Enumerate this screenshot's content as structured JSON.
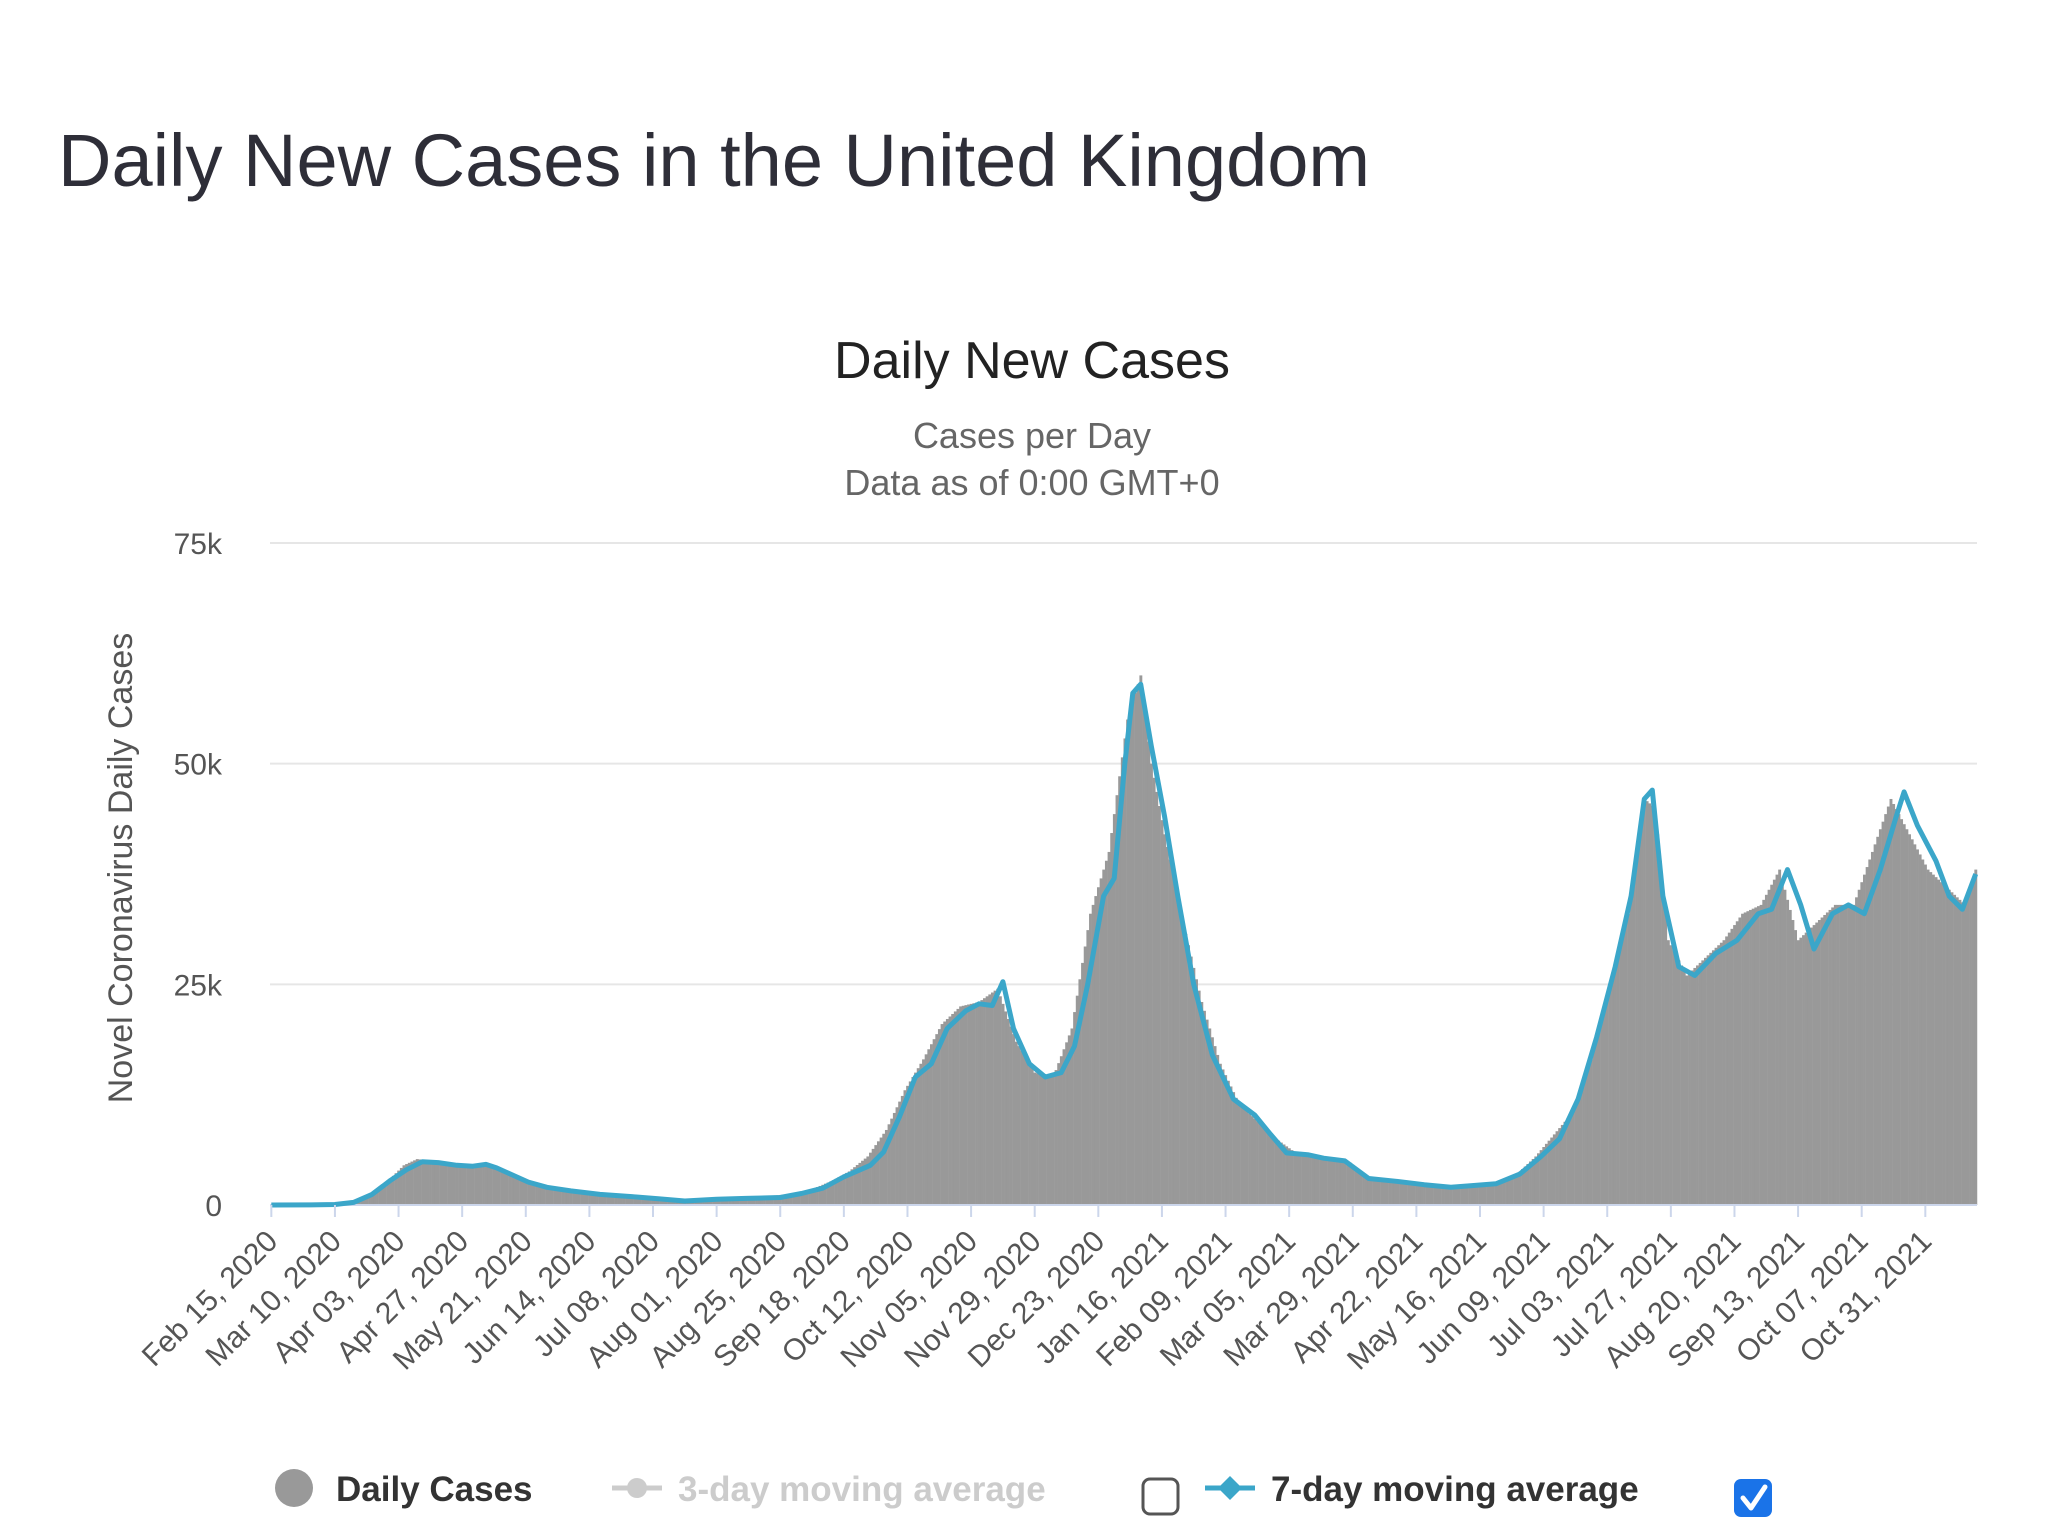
{
  "page": {
    "title": "Daily New Cases in the United Kingdom"
  },
  "chart_data": {
    "type": "bar",
    "title": "Daily New Cases",
    "subtitle": "Cases per Day",
    "subtitle2": "Data as of 0:00 GMT+0",
    "ylabel": "Novel Coronavirus Daily Cases",
    "ylim": [
      0,
      75000
    ],
    "yticks": [
      {
        "value": 0,
        "label": "0"
      },
      {
        "value": 25000,
        "label": "25k"
      },
      {
        "value": 50000,
        "label": "50k"
      },
      {
        "value": 75000,
        "label": "75k"
      }
    ],
    "x_range": [
      "2020-02-15",
      "2021-11-19"
    ],
    "xticks": [
      "Feb 15, 2020",
      "Mar 10, 2020",
      "Apr 03, 2020",
      "Apr 27, 2020",
      "May 21, 2020",
      "Jun 14, 2020",
      "Jul 08, 2020",
      "Aug 01, 2020",
      "Aug 25, 2020",
      "Sep 18, 2020",
      "Oct 12, 2020",
      "Nov 05, 2020",
      "Nov 29, 2020",
      "Dec 23, 2020",
      "Jan 16, 2021",
      "Feb 09, 2021",
      "Mar 05, 2021",
      "Mar 29, 2021",
      "Apr 22, 2021",
      "May 16, 2021",
      "Jun 09, 2021",
      "Jul 03, 2021",
      "Jul 27, 2021",
      "Aug 20, 2021",
      "Sep 13, 2021",
      "Oct 07, 2021",
      "Oct 31, 2021"
    ],
    "grid": true,
    "legend_position": "bottom",
    "colors": {
      "bars": "#999999",
      "avg7": "#3ba6c9",
      "avg3": "#cccccc",
      "grid": "#e6e6e6",
      "axis": "#ccd6eb",
      "checkbox": "#1a73e8"
    },
    "series": [
      {
        "name": "Daily Cases",
        "type": "bar",
        "points": [
          [
            "2020-02-15",
            0
          ],
          [
            "2020-03-01",
            10
          ],
          [
            "2020-03-10",
            60
          ],
          [
            "2020-03-16",
            200
          ],
          [
            "2020-03-20",
            700
          ],
          [
            "2020-03-25",
            1500
          ],
          [
            "2020-03-31",
            3000
          ],
          [
            "2020-04-05",
            4500
          ],
          [
            "2020-04-10",
            5200
          ],
          [
            "2020-04-15",
            5000
          ],
          [
            "2020-04-20",
            4700
          ],
          [
            "2020-04-25",
            4600
          ],
          [
            "2020-05-01",
            4500
          ],
          [
            "2020-05-06",
            4600
          ],
          [
            "2020-05-11",
            4000
          ],
          [
            "2020-05-16",
            3200
          ],
          [
            "2020-05-21",
            2600
          ],
          [
            "2020-05-26",
            2100
          ],
          [
            "2020-06-01",
            1800
          ],
          [
            "2020-06-07",
            1500
          ],
          [
            "2020-06-14",
            1300
          ],
          [
            "2020-06-21",
            1100
          ],
          [
            "2020-06-28",
            900
          ],
          [
            "2020-07-05",
            700
          ],
          [
            "2020-07-12",
            550
          ],
          [
            "2020-07-20",
            650
          ],
          [
            "2020-08-01",
            750
          ],
          [
            "2020-08-10",
            850
          ],
          [
            "2020-08-20",
            1000
          ],
          [
            "2020-08-31",
            1300
          ],
          [
            "2020-09-07",
            1900
          ],
          [
            "2020-09-14",
            2800
          ],
          [
            "2020-09-20",
            3800
          ],
          [
            "2020-09-27",
            5500
          ],
          [
            "2020-10-04",
            8500
          ],
          [
            "2020-10-11",
            13000
          ],
          [
            "2020-10-18",
            16500
          ],
          [
            "2020-10-25",
            20500
          ],
          [
            "2020-11-01",
            22500
          ],
          [
            "2020-11-08",
            23000
          ],
          [
            "2020-11-15",
            24500
          ],
          [
            "2020-11-22",
            18500
          ],
          [
            "2020-11-29",
            15000
          ],
          [
            "2020-12-06",
            14500
          ],
          [
            "2020-12-13",
            20000
          ],
          [
            "2020-12-20",
            33000
          ],
          [
            "2020-12-27",
            40000
          ],
          [
            "2021-01-03",
            55000
          ],
          [
            "2021-01-08",
            60000
          ],
          [
            "2021-01-12",
            50000
          ],
          [
            "2021-01-17",
            42000
          ],
          [
            "2021-01-24",
            32000
          ],
          [
            "2021-01-31",
            23000
          ],
          [
            "2021-02-07",
            16000
          ],
          [
            "2021-02-14",
            11500
          ],
          [
            "2021-02-21",
            9500
          ],
          [
            "2021-02-28",
            7500
          ],
          [
            "2021-03-07",
            6000
          ],
          [
            "2021-03-14",
            5500
          ],
          [
            "2021-03-21",
            5200
          ],
          [
            "2021-03-28",
            4800
          ],
          [
            "2021-04-04",
            3000
          ],
          [
            "2021-04-11",
            2700
          ],
          [
            "2021-04-18",
            2500
          ],
          [
            "2021-04-25",
            2200
          ],
          [
            "2021-05-02",
            2000
          ],
          [
            "2021-05-09",
            2100
          ],
          [
            "2021-05-16",
            2200
          ],
          [
            "2021-05-23",
            2500
          ],
          [
            "2021-05-30",
            3500
          ],
          [
            "2021-06-06",
            5500
          ],
          [
            "2021-06-13",
            8000
          ],
          [
            "2021-06-20",
            10500
          ],
          [
            "2021-06-27",
            16500
          ],
          [
            "2021-07-04",
            25000
          ],
          [
            "2021-07-11",
            33000
          ],
          [
            "2021-07-17",
            46000
          ],
          [
            "2021-07-21",
            45000
          ],
          [
            "2021-07-26",
            30000
          ],
          [
            "2021-08-02",
            26000
          ],
          [
            "2021-08-09",
            28000
          ],
          [
            "2021-08-16",
            30000
          ],
          [
            "2021-08-23",
            33000
          ],
          [
            "2021-08-30",
            34000
          ],
          [
            "2021-09-06",
            38000
          ],
          [
            "2021-09-13",
            30000
          ],
          [
            "2021-09-20",
            32000
          ],
          [
            "2021-09-27",
            34000
          ],
          [
            "2021-10-04",
            34000
          ],
          [
            "2021-10-11",
            40000
          ],
          [
            "2021-10-18",
            46000
          ],
          [
            "2021-10-25",
            42000
          ],
          [
            "2021-11-01",
            38000
          ],
          [
            "2021-11-08",
            36000
          ],
          [
            "2021-11-15",
            34000
          ],
          [
            "2021-11-19",
            38000
          ]
        ]
      },
      {
        "name": "3-day moving average",
        "type": "line",
        "visible": false,
        "checked": false
      },
      {
        "name": "7-day moving average",
        "type": "line",
        "visible": true,
        "checked": true,
        "points": [
          [
            "2020-02-15",
            0
          ],
          [
            "2020-03-01",
            10
          ],
          [
            "2020-03-10",
            60
          ],
          [
            "2020-03-17",
            300
          ],
          [
            "2020-03-24",
            1200
          ],
          [
            "2020-03-31",
            2800
          ],
          [
            "2020-04-06",
            4000
          ],
          [
            "2020-04-12",
            4900
          ],
          [
            "2020-04-18",
            4800
          ],
          [
            "2020-04-25",
            4500
          ],
          [
            "2020-05-01",
            4400
          ],
          [
            "2020-05-06",
            4600
          ],
          [
            "2020-05-10",
            4200
          ],
          [
            "2020-05-16",
            3400
          ],
          [
            "2020-05-22",
            2600
          ],
          [
            "2020-05-29",
            2000
          ],
          [
            "2020-06-07",
            1600
          ],
          [
            "2020-06-18",
            1200
          ],
          [
            "2020-06-30",
            950
          ],
          [
            "2020-07-10",
            700
          ],
          [
            "2020-07-20",
            450
          ],
          [
            "2020-08-01",
            650
          ],
          [
            "2020-08-12",
            750
          ],
          [
            "2020-08-25",
            850
          ],
          [
            "2020-09-02",
            1300
          ],
          [
            "2020-09-10",
            1900
          ],
          [
            "2020-09-18",
            3200
          ],
          [
            "2020-09-28",
            4500
          ],
          [
            "2020-10-03",
            6000
          ],
          [
            "2020-10-09",
            10000
          ],
          [
            "2020-10-15",
            14500
          ],
          [
            "2020-10-21",
            16000
          ],
          [
            "2020-10-27",
            20000
          ],
          [
            "2020-11-03",
            22000
          ],
          [
            "2020-11-08",
            22800
          ],
          [
            "2020-11-13",
            22600
          ],
          [
            "2020-11-17",
            25300
          ],
          [
            "2020-11-21",
            20000
          ],
          [
            "2020-11-27",
            16000
          ],
          [
            "2020-12-03",
            14500
          ],
          [
            "2020-12-09",
            15000
          ],
          [
            "2020-12-14",
            18000
          ],
          [
            "2020-12-19",
            25000
          ],
          [
            "2020-12-25",
            35000
          ],
          [
            "2020-12-29",
            37000
          ],
          [
            "2021-01-02",
            50000
          ],
          [
            "2021-01-05",
            58000
          ],
          [
            "2021-01-08",
            59000
          ],
          [
            "2021-01-12",
            52000
          ],
          [
            "2021-01-17",
            44000
          ],
          [
            "2021-01-22",
            35000
          ],
          [
            "2021-01-28",
            25000
          ],
          [
            "2021-02-04",
            17000
          ],
          [
            "2021-02-12",
            12000
          ],
          [
            "2021-02-20",
            10200
          ],
          [
            "2021-02-26",
            8000
          ],
          [
            "2021-03-04",
            5900
          ],
          [
            "2021-03-12",
            5700
          ],
          [
            "2021-03-18",
            5300
          ],
          [
            "2021-03-26",
            5000
          ],
          [
            "2021-04-04",
            3000
          ],
          [
            "2021-04-14",
            2700
          ],
          [
            "2021-04-25",
            2300
          ],
          [
            "2021-05-05",
            2000
          ],
          [
            "2021-05-13",
            2200
          ],
          [
            "2021-05-22",
            2400
          ],
          [
            "2021-05-31",
            3500
          ],
          [
            "2021-06-08",
            5500
          ],
          [
            "2021-06-15",
            7500
          ],
          [
            "2021-06-22",
            12000
          ],
          [
            "2021-06-29",
            19000
          ],
          [
            "2021-07-06",
            27000
          ],
          [
            "2021-07-12",
            35000
          ],
          [
            "2021-07-17",
            46000
          ],
          [
            "2021-07-20",
            47000
          ],
          [
            "2021-07-24",
            35000
          ],
          [
            "2021-07-30",
            27000
          ],
          [
            "2021-08-05",
            26000
          ],
          [
            "2021-08-13",
            28500
          ],
          [
            "2021-08-21",
            30000
          ],
          [
            "2021-08-29",
            33000
          ],
          [
            "2021-09-03",
            33500
          ],
          [
            "2021-09-09",
            38000
          ],
          [
            "2021-09-14",
            34000
          ],
          [
            "2021-09-19",
            29000
          ],
          [
            "2021-09-26",
            33000
          ],
          [
            "2021-10-02",
            34000
          ],
          [
            "2021-10-08",
            33000
          ],
          [
            "2021-10-14",
            38000
          ],
          [
            "2021-10-20",
            44000
          ],
          [
            "2021-10-23",
            46800
          ],
          [
            "2021-10-28",
            43000
          ],
          [
            "2021-11-04",
            39000
          ],
          [
            "2021-11-09",
            35000
          ],
          [
            "2021-11-14",
            33500
          ],
          [
            "2021-11-19",
            37500
          ]
        ]
      }
    ]
  }
}
